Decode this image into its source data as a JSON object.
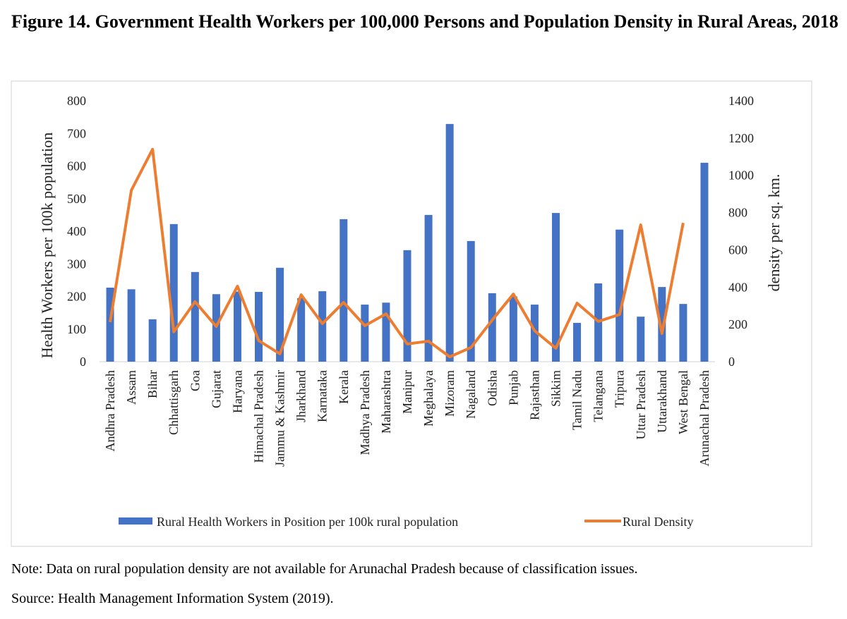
{
  "chart_data": {
    "type": "bar_line",
    "title": "Figure 14. Government Health Workers per 100,000 Persons and Population Density in Rural Areas, 2018",
    "categories": [
      "Andhra Pradesh",
      "Assam",
      "Bihar",
      "Chhattisgarh",
      "Goa",
      "Gujarat",
      "Haryana",
      "Himachal Pradesh",
      "Jammu & Kashmir",
      "Jharkhand",
      "Karnataka",
      "Kerala",
      "Madhya Pradesh",
      "Maharashtra",
      "Manipur",
      "Meghalaya",
      "Mizoram",
      "Nagaland",
      "Odisha",
      "Punjab",
      "Rajasthan",
      "Sikkim",
      "Tamil Nadu",
      "Telangana",
      "Tripura",
      "Uttar Pradesh",
      "Uttarakhand",
      "West Bengal",
      "Arunachal Pradesh"
    ],
    "series": [
      {
        "name": "Rural Health Workers in Position per 100k rural population",
        "color": "#4472c4",
        "type": "bar",
        "values": [
          227,
          222,
          130,
          422,
          275,
          207,
          215,
          214,
          288,
          195,
          216,
          437,
          175,
          181,
          342,
          450,
          729,
          370,
          210,
          200,
          175,
          456,
          119,
          240,
          405,
          138,
          229,
          177,
          610
        ]
      },
      {
        "name": "Rural Density",
        "color": "#ed7d31",
        "type": "line",
        "axis": "y2",
        "values": [
          212,
          920,
          1140,
          160,
          322,
          189,
          405,
          113,
          42,
          359,
          204,
          318,
          193,
          257,
          95,
          110,
          26,
          76,
          223,
          363,
          166,
          72,
          314,
          216,
          253,
          734,
          151,
          745,
          null
        ]
      }
    ],
    "ylabel": "Health Workers per 100k population",
    "y2label": "density per sq. km.",
    "ylim": [
      0,
      800
    ],
    "yticks": [
      0,
      100,
      200,
      300,
      400,
      500,
      600,
      700,
      800
    ],
    "y2lim": [
      0,
      1400
    ],
    "y2ticks": [
      0,
      200,
      400,
      600,
      800,
      1000,
      1200,
      1400
    ],
    "grid": false,
    "legend": "bottom",
    "note": "Note: Data on rural population density are not available for Arunachal Pradesh because of classification issues.",
    "source": "Source: Health Management Information System (2019)."
  }
}
